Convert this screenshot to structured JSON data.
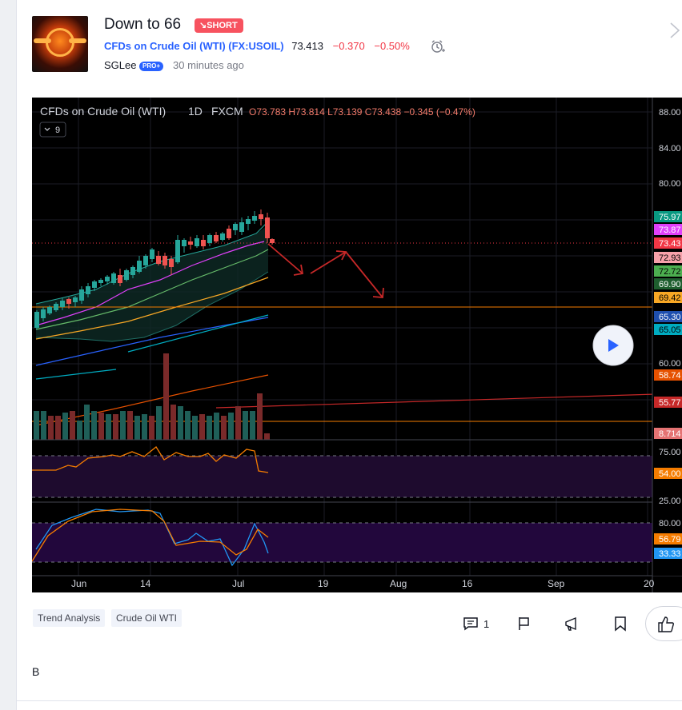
{
  "idea": {
    "title": "Down to 66",
    "badge": "↘SHORT",
    "symbol": "CFDs on Crude Oil (WTI) (FX:USOIL)",
    "price": "73.413",
    "change": "−0.370",
    "change_pct": "−0.50%",
    "author": "SGLee",
    "author_badge": "PRO+",
    "posted": "30 minutes ago",
    "description": "B"
  },
  "tags": [
    "Trend Analysis",
    "Crude Oil WTI"
  ],
  "actions": {
    "comment_count": "1"
  },
  "chart": {
    "legend_name": "CFDs on Crude Oil (WTI)",
    "legend_interval": "1D",
    "legend_source": "FXCM",
    "ohlc": "O73.783 H73.814 L73.139 C73.438 −0.345 (−0.47%)",
    "indicators_badge": "9",
    "price_axis_ticks": [
      "88.00",
      "84.00",
      "80.00",
      "60.00"
    ],
    "price_labels": [
      {
        "text": "75.97",
        "color": "#089981"
      },
      {
        "text": "73.87",
        "color": "#e040fb"
      },
      {
        "text": "73.43",
        "color": "#f23645"
      },
      {
        "text": "72.93",
        "color": "#f7a1aa"
      },
      {
        "text": "72.72",
        "color": "#4caf50"
      },
      {
        "text": "69.90",
        "color": "#1e5e2e"
      },
      {
        "text": "69.42",
        "color": "#f9a825"
      },
      {
        "text": "65.30",
        "color": "#1e4fae"
      },
      {
        "text": "65.05",
        "color": "#00acc1"
      },
      {
        "text": "58.74",
        "color": "#e65100"
      },
      {
        "text": "55.77",
        "color": "#c62828"
      },
      {
        "text": "8.714",
        "color": "#e57373"
      }
    ],
    "rsi_ticks": [
      "75.00",
      "25.00"
    ],
    "rsi_label": "54.00",
    "stoch_ticks": [
      "80.00"
    ],
    "stoch_labels": [
      {
        "text": "56.79",
        "color": "#f57c00"
      },
      {
        "text": "33.33",
        "color": "#2196f3"
      }
    ],
    "time_labels": [
      "Jun",
      "14",
      "Jul",
      "19",
      "Aug",
      "16",
      "Sep",
      "20"
    ]
  },
  "colors": {
    "up": "#26a69a",
    "down": "#ef5350",
    "accent": "#2962ff",
    "short": "#f7525f"
  }
}
